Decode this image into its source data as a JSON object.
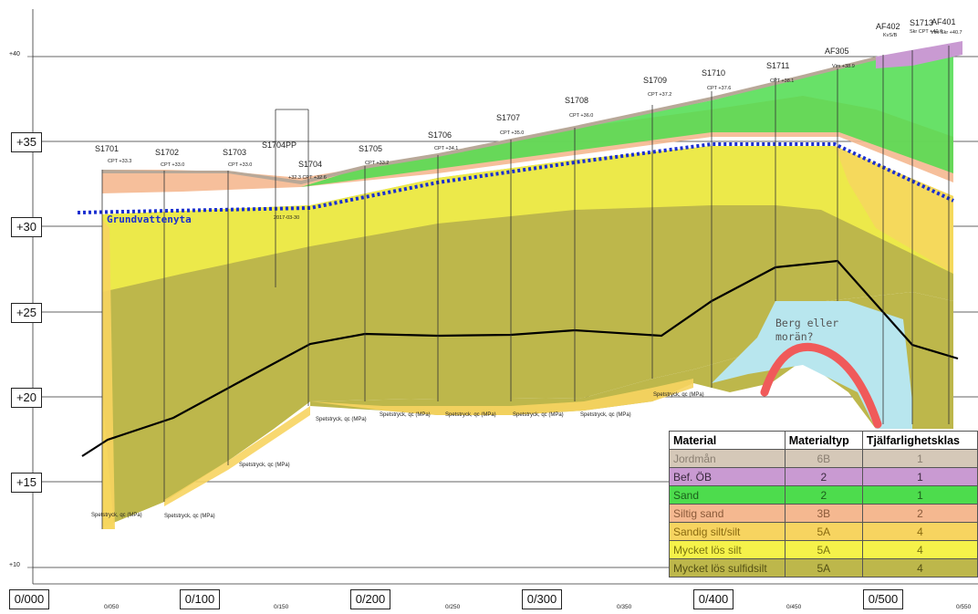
{
  "elevation_labels_boxed": [
    "+35",
    "+30",
    "+25",
    "+20",
    "+15"
  ],
  "elevation_labels_small": [
    "+40",
    "+10"
  ],
  "chainage_boxed": [
    "0/000",
    "0/100",
    "0/200",
    "0/300",
    "0/400",
    "0/500"
  ],
  "chainage_small": [
    "0/050",
    "0/150",
    "0/250",
    "0/350",
    "0/450",
    "0/550"
  ],
  "groundwater_label": "Grundvattenyta",
  "rock_label_line1": "Berg eller",
  "rock_label_line2": "morän?",
  "boreholes": [
    {
      "name": "S1701",
      "cpt": "CPT +33.3"
    },
    {
      "name": "S1702",
      "cpt": "CPT +33.0"
    },
    {
      "name": "S1703",
      "cpt": "CPT +33.0"
    },
    {
      "name": "S1704PP",
      "cpt": "2017-03-30"
    },
    {
      "name": "S1704",
      "cpt": "+32.3 CPT +32.6"
    },
    {
      "name": "S1705",
      "cpt": "CPT +33.2"
    },
    {
      "name": "S1706",
      "cpt": "CPT +34.1"
    },
    {
      "name": "S1707",
      "cpt": "CPT +35.0"
    },
    {
      "name": "S1708",
      "cpt": "CPT +36.0"
    },
    {
      "name": "S1709",
      "cpt": "CPT +37.2"
    },
    {
      "name": "S1710",
      "cpt": "CPT +37.6"
    },
    {
      "name": "S1711",
      "cpt": "CPT +38.1"
    },
    {
      "name": "AF305",
      "cpt": "Vim +38.9"
    },
    {
      "name": "AF402",
      "cpt": "KvS/B"
    },
    {
      "name": "S1713",
      "cpt": "Skr CPT +40.6"
    },
    {
      "name": "AF401",
      "cpt": "Vim Skr +40.7"
    }
  ],
  "xaxis_caption": "Spetstryck, qc (MPa)",
  "legend": {
    "headers": [
      "Material",
      "Materialtyp",
      "Tjälfarlighetsklas"
    ],
    "rows": [
      {
        "material": "Jordmån",
        "type": "6B",
        "class": "1",
        "color": "#d5c8b8",
        "text": "#8a7f72"
      },
      {
        "material": "Bef. ÖB",
        "type": "2",
        "class": "1",
        "color": "#c99ad2",
        "text": "#3a2a3e"
      },
      {
        "material": "Sand",
        "type": "2",
        "class": "1",
        "color": "#4ddc4d",
        "text": "#1b5e1b"
      },
      {
        "material": "Siltig sand",
        "type": "3B",
        "class": "2",
        "color": "#f5b890",
        "text": "#8a5a3a"
      },
      {
        "material": "Sandig silt/silt",
        "type": "5A",
        "class": "4",
        "color": "#f7d460",
        "text": "#8a6a10"
      },
      {
        "material": "Mycket lös silt",
        "type": "5A",
        "class": "4",
        "color": "#f5f24a",
        "text": "#7a7410"
      },
      {
        "material": "Mycket lös sulfidsilt",
        "type": "5A",
        "class": "4",
        "color": "#bdb74b",
        "text": "#545014"
      }
    ]
  }
}
